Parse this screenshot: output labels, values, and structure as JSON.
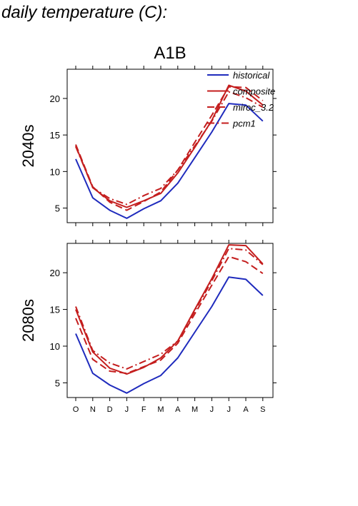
{
  "page_title": "daily temperature (C):",
  "colors": {
    "historical": "#1f2bbd",
    "future": "#c41e1e"
  },
  "chart_data": {
    "type": "line",
    "title": "A1B",
    "x": [
      "O",
      "N",
      "D",
      "J",
      "F",
      "M",
      "A",
      "M",
      "J",
      "J",
      "A",
      "S"
    ],
    "legend": {
      "placement": "top-right",
      "entries": [
        {
          "name": "historical",
          "style": "solid",
          "color": "#1f2bbd"
        },
        {
          "name": "composite",
          "style": "solid",
          "color": "#c41e1e"
        },
        {
          "name": "miroc_3.2",
          "style": "dashed",
          "color": "#c41e1e"
        },
        {
          "name": "pcm1",
          "style": "dashdot",
          "color": "#c41e1e"
        }
      ]
    },
    "panels": [
      {
        "ylabel": "2040s",
        "ylim": [
          3,
          24
        ],
        "yticks": [
          5,
          10,
          15,
          20
        ],
        "series": [
          {
            "name": "historical",
            "values": [
              11.7,
              6.4,
              4.7,
              3.6,
              4.9,
              6.0,
              8.4,
              11.9,
              15.4,
              19.3,
              19.1,
              16.9
            ]
          },
          {
            "name": "composite",
            "values": [
              13.5,
              7.8,
              6.0,
              5.1,
              6.0,
              7.0,
              9.8,
              13.3,
              17.0,
              21.8,
              21.0,
              19.1
            ]
          },
          {
            "name": "miroc_3.2",
            "values": [
              13.7,
              7.9,
              5.8,
              4.7,
              5.9,
              7.2,
              10.2,
              14.0,
              17.7,
              21.6,
              21.5,
              19.7
            ]
          },
          {
            "name": "pcm1",
            "values": [
              13.4,
              7.8,
              6.3,
              5.5,
              6.7,
              7.7,
              10.2,
              13.5,
              16.9,
              20.9,
              20.1,
              18.8
            ]
          }
        ]
      },
      {
        "ylabel": "2080s",
        "ylim": [
          3,
          24
        ],
        "yticks": [
          5,
          10,
          15,
          20
        ],
        "series": [
          {
            "name": "historical",
            "values": [
              11.7,
              6.3,
              4.7,
              3.6,
              4.9,
              6.0,
              8.4,
              11.9,
              15.4,
              19.4,
              19.1,
              16.9
            ]
          },
          {
            "name": "composite",
            "values": [
              15.0,
              9.2,
              7.0,
              6.2,
              7.1,
              8.4,
              10.7,
              15.0,
              19.2,
              23.8,
              23.7,
              21.2
            ]
          },
          {
            "name": "miroc_3.2",
            "values": [
              13.8,
              8.2,
              6.6,
              6.3,
              7.2,
              8.1,
              10.4,
              14.4,
              18.3,
              22.2,
              21.5,
              19.9
            ]
          },
          {
            "name": "pcm1",
            "values": [
              15.4,
              9.4,
              7.7,
              6.9,
              7.9,
              8.9,
              10.7,
              14.8,
              18.9,
              23.3,
              23.1,
              21.1
            ]
          }
        ]
      }
    ]
  }
}
